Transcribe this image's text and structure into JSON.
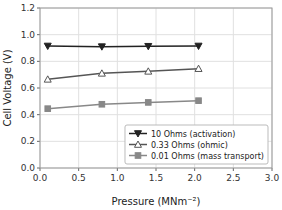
{
  "chart_data": {
    "type": "line",
    "xlabel": "Pressure (MNm⁻²)",
    "ylabel": "Cell Voltage (V)",
    "x": [
      0.1,
      0.8,
      1.4,
      2.05
    ],
    "xlim": [
      0.0,
      3.0
    ],
    "ylim": [
      0.0,
      1.2
    ],
    "xticks": [
      {
        "value": 0.0,
        "label": "0.0"
      },
      0.5,
      {
        "value": 1.0,
        "label": "1.0"
      },
      1.5,
      {
        "value": 2.0,
        "label": "2.0"
      },
      2.5,
      {
        "value": 3.0,
        "label": "3.0"
      }
    ],
    "yticks": [
      {
        "value": 0.0,
        "label": "0.0"
      },
      0.2,
      0.4,
      0.6,
      0.8,
      {
        "value": 1.0,
        "label": "1.0"
      },
      1.2
    ],
    "series": [
      {
        "name": "10 Ohms (activation)",
        "color": "#222222",
        "marker": "triangle-down",
        "values": [
          0.915,
          0.91,
          0.913,
          0.915
        ]
      },
      {
        "name": "0.33 Ohms (ohmic)",
        "color": "#555555",
        "marker": "triangle-up-open",
        "values": [
          0.665,
          0.71,
          0.725,
          0.745
        ]
      },
      {
        "name": "0.01 Ohms (mass transport)",
        "color": "#888888",
        "marker": "square",
        "values": [
          0.445,
          0.478,
          0.492,
          0.505
        ]
      }
    ],
    "grid": true,
    "legend": "lower right"
  }
}
